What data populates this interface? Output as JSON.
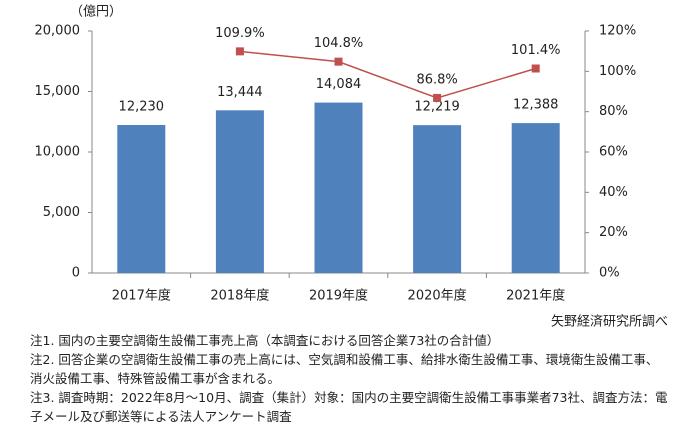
{
  "chart_data": {
    "type": "bar",
    "unit_label": "（億円）",
    "categories": [
      "2017年度",
      "2018年度",
      "2019年度",
      "2020年度",
      "2021年度"
    ],
    "series": [
      {
        "type": "bar",
        "color": "#4f81bd",
        "values": [
          12230,
          13444,
          14084,
          12219,
          12388
        ],
        "value_labels": [
          "12,230",
          "13,444",
          "14,084",
          "12,219",
          "12,388"
        ]
      },
      {
        "type": "line",
        "axis": "y2",
        "color": "#c0504d",
        "values": [
          null,
          109.9,
          104.8,
          86.8,
          101.4
        ],
        "value_labels": [
          null,
          "109.9%",
          "104.8%",
          "86.8%",
          "101.4%"
        ]
      }
    ],
    "ylim": [
      0,
      20000
    ],
    "yticks": [
      0,
      {
        "value": 5000,
        "label": "5,000"
      },
      {
        "value": 10000,
        "label": "10,000"
      },
      {
        "value": 15000,
        "label": "15,000"
      },
      {
        "value": 20000,
        "label": "20,000"
      }
    ],
    "y2lim": [
      0,
      120
    ],
    "y2ticks": [
      {
        "value": 0,
        "label": "0%"
      },
      {
        "value": 20,
        "label": "20%"
      },
      {
        "value": 40,
        "label": "40%"
      },
      {
        "value": 60,
        "label": "60%"
      },
      {
        "value": 80,
        "label": "80%"
      },
      {
        "value": 100,
        "label": "100%"
      },
      {
        "value": 120,
        "label": "120%"
      }
    ],
    "grid": false,
    "source": "矢野経済研究所調べ"
  },
  "notes": [
    "注1. 国内の主要空調衛生設備工事売上高（本調査における回答企業73社の合計値）",
    "注2. 回答企業の空調衛生設備工事の売上高には、空気調和設備工事、給排水衛生設備工事、環境衛生設備工事、消火設備工事、特殊管設備工事が含まれる。",
    "注3. 調査時期：2022年8月～10月、調査（集計）対象：国内の主要空調衛生設備工事事業者73社、調査方法：電子メール及び郵送等による法人アンケート調査"
  ]
}
